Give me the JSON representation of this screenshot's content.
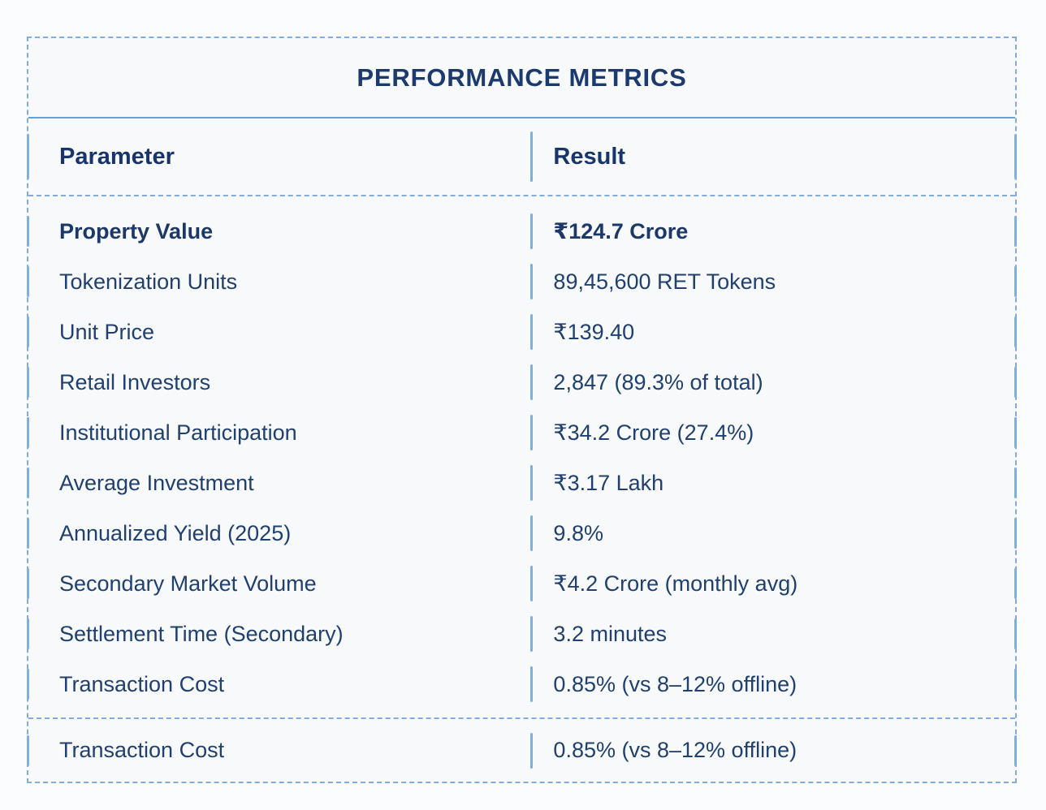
{
  "chart_data": {
    "type": "table",
    "title": "PERFORMANCE METRICS",
    "columns": [
      "Parameter",
      "Result"
    ],
    "rows": [
      [
        "Property Value",
        "₹124.7 Crore"
      ],
      [
        "Tokenization Units",
        "89,45,600 RET Tokens"
      ],
      [
        "Unit Price",
        "₹139.40"
      ],
      [
        "Retail Investors",
        "2,847 (89.3% of total)"
      ],
      [
        "Institutional Participation",
        "₹34.2 Crore (27.4%)"
      ],
      [
        "Average Investment",
        "₹3.17 Lakh"
      ],
      [
        "Annualized Yield (2025)",
        "9.8%"
      ],
      [
        "Secondary Market Volume",
        "₹4.2 Crore (monthly avg)"
      ],
      [
        "Settlement Time (Secondary)",
        "3.2 minutes"
      ],
      [
        "Transaction Cost",
        "0.85% (vs 8–12% offline)"
      ]
    ],
    "footer_row": [
      "Transaction Cost",
      "0.85% (vs 8–12% offline)"
    ],
    "layout": {
      "legend_position": "none",
      "grid": "dashed-borders",
      "header_divider": "solid"
    }
  },
  "colors": {
    "text_navy": "#1c3a6e",
    "border_dashed_blue": "#84abdc",
    "divider_solid_blue": "#66a0d8",
    "segment_blue": "#7fafe2",
    "card_background": "#f8f9fb",
    "page_background": "#fbfcfd"
  }
}
